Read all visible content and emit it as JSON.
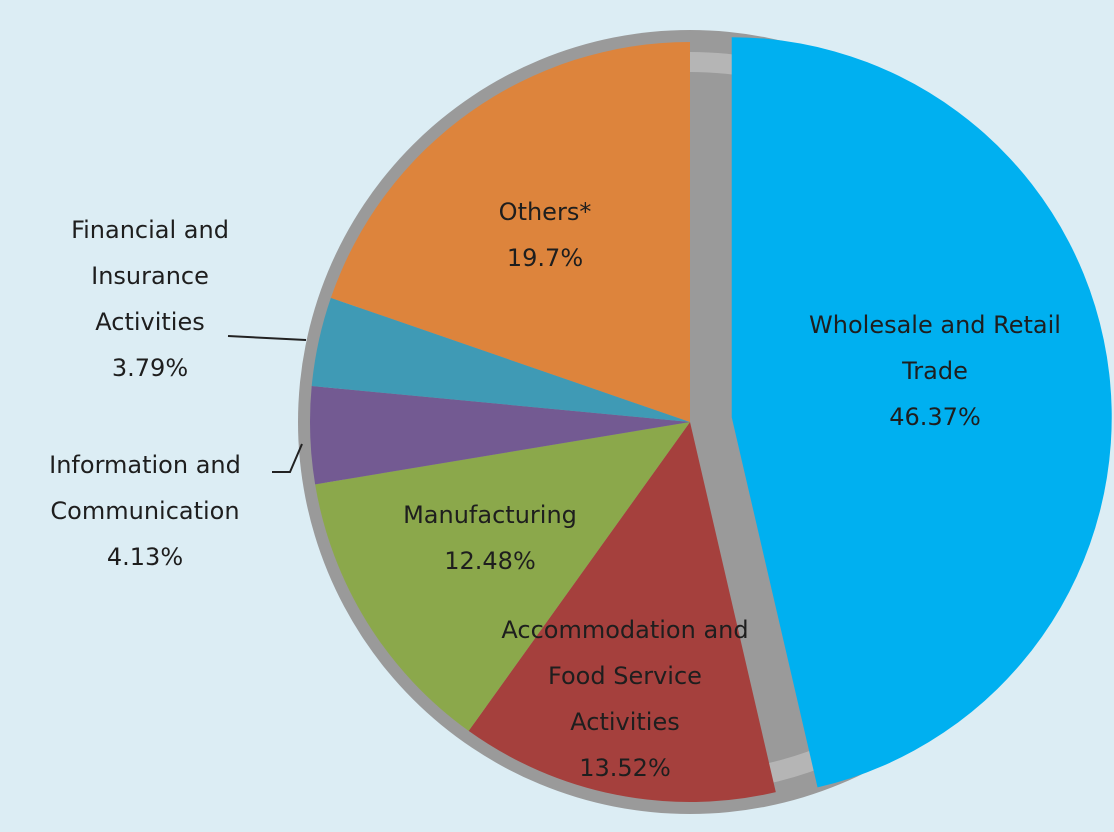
{
  "chart_data": {
    "type": "pie",
    "categories": [
      "Wholesale and Retail Trade",
      "Accommodation and Food Service Activities",
      "Manufacturing",
      "Information and Communication",
      "Financial and Insurance Activities",
      "Others*"
    ],
    "values": [
      46.37,
      13.52,
      12.48,
      4.13,
      3.79,
      19.7
    ],
    "value_labels": [
      "46.37%",
      "13.52%",
      "12.48%",
      "4.13%",
      "3.79%",
      "19.7%"
    ],
    "colors": [
      "#00b0f0",
      "#a5403d",
      "#8ba84b",
      "#735a92",
      "#3f9ab5",
      "#dd843c"
    ]
  }
}
